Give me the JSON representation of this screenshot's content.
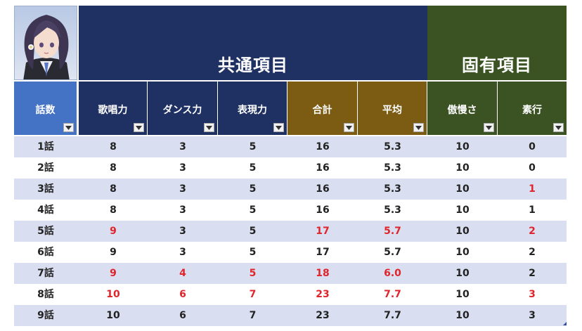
{
  "header": {
    "common_label": "共通項目",
    "unique_label": "固有項目"
  },
  "columns": [
    {
      "label": "話数"
    },
    {
      "label": "歌唱力"
    },
    {
      "label": "ダンス力"
    },
    {
      "label": "表現力"
    },
    {
      "label": "合計"
    },
    {
      "label": "平均"
    },
    {
      "label": "傲慢さ"
    },
    {
      "label": "素行"
    }
  ],
  "colors": {
    "common_header": "#1f3063",
    "unique_header": "#3b5323",
    "episode_header": "#4472c4",
    "total_header": "#7b5c12",
    "highlight_text": "#e0242c",
    "band_row": "#d9dff0"
  },
  "icons": {
    "filter_dropdown": "chevron-down-icon",
    "avatar": "character-portrait"
  },
  "rows": [
    {
      "cells": [
        "1話",
        "8",
        "3",
        "5",
        "16",
        "5.3",
        "10",
        "0"
      ],
      "red": [
        false,
        false,
        false,
        false,
        false,
        false,
        false,
        false
      ]
    },
    {
      "cells": [
        "2話",
        "8",
        "3",
        "5",
        "16",
        "5.3",
        "10",
        "0"
      ],
      "red": [
        false,
        false,
        false,
        false,
        false,
        false,
        false,
        false
      ]
    },
    {
      "cells": [
        "3話",
        "8",
        "3",
        "5",
        "16",
        "5.3",
        "10",
        "1"
      ],
      "red": [
        false,
        false,
        false,
        false,
        false,
        false,
        false,
        true
      ]
    },
    {
      "cells": [
        "4話",
        "8",
        "3",
        "5",
        "16",
        "5.3",
        "10",
        "1"
      ],
      "red": [
        false,
        false,
        false,
        false,
        false,
        false,
        false,
        false
      ]
    },
    {
      "cells": [
        "5話",
        "9",
        "3",
        "5",
        "17",
        "5.7",
        "10",
        "2"
      ],
      "red": [
        false,
        true,
        false,
        false,
        true,
        true,
        false,
        true
      ]
    },
    {
      "cells": [
        "6話",
        "9",
        "3",
        "5",
        "17",
        "5.7",
        "10",
        "2"
      ],
      "red": [
        false,
        false,
        false,
        false,
        false,
        false,
        false,
        false
      ]
    },
    {
      "cells": [
        "7話",
        "9",
        "4",
        "5",
        "18",
        "6.0",
        "10",
        "2"
      ],
      "red": [
        false,
        true,
        true,
        true,
        true,
        true,
        false,
        false
      ]
    },
    {
      "cells": [
        "8話",
        "10",
        "6",
        "7",
        "23",
        "7.7",
        "10",
        "3"
      ],
      "red": [
        false,
        true,
        true,
        true,
        true,
        true,
        false,
        true
      ]
    },
    {
      "cells": [
        "9話",
        "10",
        "6",
        "7",
        "23",
        "7.7",
        "10",
        "3"
      ],
      "red": [
        false,
        false,
        false,
        false,
        false,
        false,
        false,
        false
      ]
    }
  ]
}
